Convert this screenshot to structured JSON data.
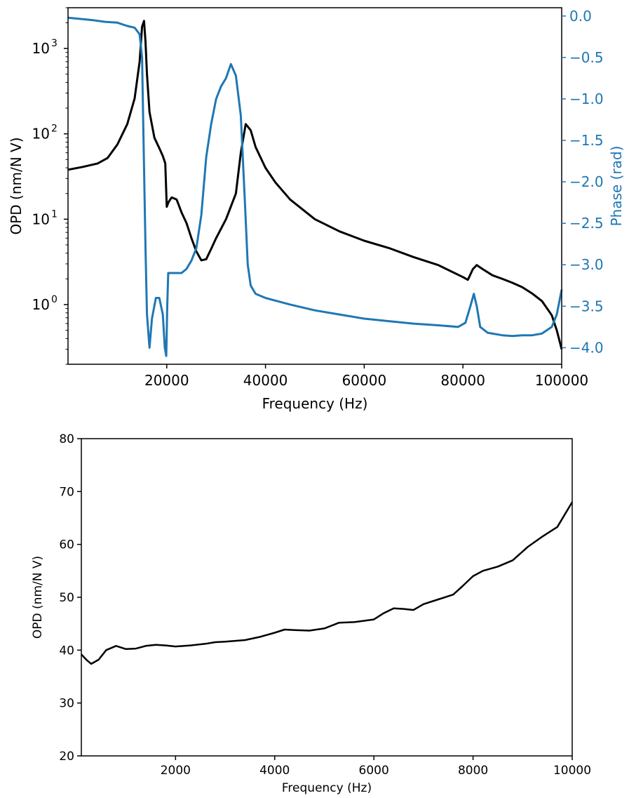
{
  "chart_data": [
    {
      "type": "line",
      "title": "",
      "xlabel": "Frequency (Hz)",
      "ylabel": "OPD (nm/N V)",
      "y2label": "Phase (rad)",
      "xlim": [
        0,
        100000
      ],
      "ylim": [
        0.2,
        3000
      ],
      "yscale": "log",
      "y2lim": [
        -4.2,
        0.1
      ],
      "grid": false,
      "legend": "none",
      "x_ticks": [
        20000,
        40000,
        60000,
        80000,
        100000
      ],
      "x_tick_labels": [
        "20000",
        "40000",
        "60000",
        "80000",
        "100000"
      ],
      "y_ticks": [
        {
          "value": 1000,
          "base": "10",
          "exp": "3"
        },
        {
          "value": 100,
          "base": "10",
          "exp": "2"
        },
        {
          "value": 10,
          "base": "10",
          "exp": "1"
        },
        {
          "value": 1,
          "base": "10",
          "exp": "0"
        }
      ],
      "y2_ticks": [
        0.0,
        -0.5,
        -1.0,
        -1.5,
        -2.0,
        -2.5,
        -3.0,
        -3.5,
        -4.0
      ],
      "y2_tick_labels": [
        "0.0",
        "−0.5",
        "−1.0",
        "−1.5",
        "−2.0",
        "−2.5",
        "−3.0",
        "−3.5",
        "−4.0"
      ],
      "series": [
        {
          "axis": "left",
          "color": "#000000",
          "points": [
            [
              0,
              38
            ],
            [
              3000,
              41
            ],
            [
              6000,
              45
            ],
            [
              8000,
              52
            ],
            [
              10000,
              75
            ],
            [
              12000,
              130
            ],
            [
              13500,
              260
            ],
            [
              14500,
              700
            ],
            [
              15000,
              1800
            ],
            [
              15400,
              2100
            ],
            [
              15700,
              1200
            ],
            [
              16000,
              500
            ],
            [
              16500,
              180
            ],
            [
              17500,
              90
            ],
            [
              18500,
              68
            ],
            [
              19200,
              55
            ],
            [
              19700,
              45
            ],
            [
              20000,
              14
            ],
            [
              20400,
              16
            ],
            [
              21000,
              18
            ],
            [
              22000,
              17
            ],
            [
              23000,
              12
            ],
            [
              24000,
              9
            ],
            [
              25000,
              6
            ],
            [
              26000,
              4.2
            ],
            [
              27000,
              3.3
            ],
            [
              28000,
              3.4
            ],
            [
              29000,
              4.5
            ],
            [
              30000,
              6
            ],
            [
              32000,
              10
            ],
            [
              34000,
              20
            ],
            [
              35000,
              60
            ],
            [
              36000,
              130
            ],
            [
              37000,
              110
            ],
            [
              38000,
              70
            ],
            [
              40000,
              40
            ],
            [
              42000,
              27
            ],
            [
              45000,
              17
            ],
            [
              50000,
              10
            ],
            [
              55000,
              7.2
            ],
            [
              60000,
              5.6
            ],
            [
              65000,
              4.6
            ],
            [
              70000,
              3.6
            ],
            [
              75000,
              2.9
            ],
            [
              80000,
              2.1
            ],
            [
              81000,
              1.95
            ],
            [
              82000,
              2.6
            ],
            [
              82800,
              2.9
            ],
            [
              84000,
              2.6
            ],
            [
              86000,
              2.2
            ],
            [
              88000,
              2.0
            ],
            [
              90000,
              1.8
            ],
            [
              92000,
              1.6
            ],
            [
              94000,
              1.35
            ],
            [
              96000,
              1.1
            ],
            [
              98000,
              0.75
            ],
            [
              99000,
              0.5
            ],
            [
              100000,
              0.3
            ]
          ]
        },
        {
          "axis": "right",
          "name": "Phase (rad)",
          "color": "#1f77b4",
          "points": [
            [
              0,
              -0.02
            ],
            [
              5000,
              -0.05
            ],
            [
              7500,
              -0.07
            ],
            [
              10000,
              -0.08
            ],
            [
              12000,
              -0.12
            ],
            [
              13500,
              -0.14
            ],
            [
              14500,
              -0.22
            ],
            [
              15000,
              -0.5
            ],
            [
              15300,
              -1.5
            ],
            [
              15700,
              -2.8
            ],
            [
              16000,
              -3.6
            ],
            [
              16500,
              -4.0
            ],
            [
              17000,
              -3.65
            ],
            [
              17800,
              -3.4
            ],
            [
              18500,
              -3.4
            ],
            [
              19200,
              -3.6
            ],
            [
              19600,
              -4.0
            ],
            [
              19900,
              -4.1
            ],
            [
              20100,
              -3.5
            ],
            [
              20300,
              -3.1
            ],
            [
              21000,
              -3.1
            ],
            [
              23000,
              -3.1
            ],
            [
              24000,
              -3.05
            ],
            [
              25000,
              -2.95
            ],
            [
              26000,
              -2.8
            ],
            [
              27000,
              -2.4
            ],
            [
              28000,
              -1.7
            ],
            [
              29000,
              -1.3
            ],
            [
              30000,
              -1.0
            ],
            [
              31000,
              -0.85
            ],
            [
              32000,
              -0.75
            ],
            [
              33000,
              -0.58
            ],
            [
              34000,
              -0.72
            ],
            [
              35000,
              -1.2
            ],
            [
              35800,
              -2.2
            ],
            [
              36400,
              -3.0
            ],
            [
              37000,
              -3.25
            ],
            [
              38000,
              -3.35
            ],
            [
              40000,
              -3.4
            ],
            [
              45000,
              -3.48
            ],
            [
              50000,
              -3.55
            ],
            [
              55000,
              -3.6
            ],
            [
              60000,
              -3.65
            ],
            [
              65000,
              -3.68
            ],
            [
              70000,
              -3.71
            ],
            [
              75000,
              -3.73
            ],
            [
              79000,
              -3.75
            ],
            [
              80500,
              -3.7
            ],
            [
              81500,
              -3.5
            ],
            [
              82200,
              -3.35
            ],
            [
              82800,
              -3.5
            ],
            [
              83500,
              -3.75
            ],
            [
              85000,
              -3.82
            ],
            [
              88000,
              -3.85
            ],
            [
              90000,
              -3.86
            ],
            [
              92000,
              -3.85
            ],
            [
              94000,
              -3.85
            ],
            [
              96000,
              -3.83
            ],
            [
              98000,
              -3.75
            ],
            [
              99000,
              -3.6
            ],
            [
              100000,
              -3.3
            ]
          ]
        }
      ]
    },
    {
      "type": "line",
      "title": "",
      "xlabel": "Frequency (Hz)",
      "ylabel": "OPD (nm/N V)",
      "xlim": [
        100,
        10000
      ],
      "ylim": [
        20,
        80
      ],
      "grid": false,
      "legend": "none",
      "x_ticks": [
        2000,
        4000,
        6000,
        8000,
        10000
      ],
      "x_tick_labels": [
        "2000",
        "4000",
        "6000",
        "8000",
        "10000"
      ],
      "y_ticks": [
        20,
        30,
        40,
        50,
        60,
        70,
        80
      ],
      "y_tick_labels": [
        "20",
        "30",
        "40",
        "50",
        "60",
        "70",
        "80"
      ],
      "series": [
        {
          "color": "#000000",
          "points": [
            [
              100,
              39.2
            ],
            [
              200,
              38.2
            ],
            [
              300,
              37.4
            ],
            [
              450,
              38.2
            ],
            [
              600,
              40.0
            ],
            [
              800,
              40.8
            ],
            [
              1000,
              40.2
            ],
            [
              1200,
              40.3
            ],
            [
              1400,
              40.8
            ],
            [
              1600,
              41.0
            ],
            [
              1800,
              40.9
            ],
            [
              2000,
              40.7
            ],
            [
              2300,
              40.9
            ],
            [
              2600,
              41.2
            ],
            [
              2800,
              41.5
            ],
            [
              3000,
              41.6
            ],
            [
              3400,
              41.9
            ],
            [
              3700,
              42.5
            ],
            [
              4000,
              43.3
            ],
            [
              4200,
              43.9
            ],
            [
              4400,
              43.8
            ],
            [
              4700,
              43.7
            ],
            [
              5000,
              44.1
            ],
            [
              5300,
              45.2
            ],
            [
              5600,
              45.3
            ],
            [
              6000,
              45.8
            ],
            [
              6200,
              47.0
            ],
            [
              6400,
              47.9
            ],
            [
              6600,
              47.8
            ],
            [
              6800,
              47.6
            ],
            [
              7000,
              48.7
            ],
            [
              7300,
              49.6
            ],
            [
              7600,
              50.5
            ],
            [
              7800,
              52.2
            ],
            [
              8000,
              54.0
            ],
            [
              8200,
              55.0
            ],
            [
              8500,
              55.8
            ],
            [
              8800,
              57.0
            ],
            [
              9100,
              59.5
            ],
            [
              9400,
              61.5
            ],
            [
              9700,
              63.3
            ],
            [
              10000,
              68.0
            ]
          ]
        }
      ]
    }
  ]
}
